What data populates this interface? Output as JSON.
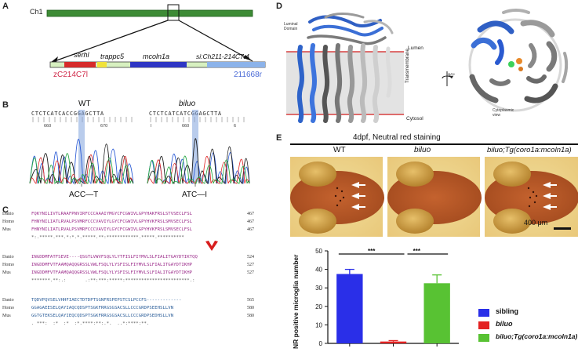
{
  "panel_a": {
    "letter": "A",
    "chromosome": "Ch1",
    "genes": [
      "serhl",
      "trappc5",
      "mcoln1a",
      "si:Ch211-214C7.4"
    ],
    "left_marker": "zC214C7l",
    "right_marker": "211668r"
  },
  "panel_b": {
    "letter": "B",
    "wt_label": "WT",
    "mut_label": "biluo",
    "wt_seq": "CTCTCATCACCGGAGCTTA",
    "mut_seq": "CTCTCATCATCGGAGCTTA",
    "wt_pos_left": "660",
    "wt_pos_right": "670",
    "mut_pos_left": "l",
    "mut_pos_center": "660",
    "mut_pos_right": "6",
    "wt_change": "ACC—T",
    "mut_change": "ATC—I"
  },
  "panel_c": {
    "letter": "C",
    "blocks": [
      {
        "rows": [
          {
            "species": "Danio",
            "seq": "FQKYNILIVTLRAAFPNVIRFCCCAAAIYMGYCFCGWIVLGPYHAKFRSLSTVSECLFSL",
            "num": "467"
          },
          {
            "species": "Homo",
            "seq": "FHNYNILIATLRVALPSVMRFCCCVAVIYLGYCFCGWIVLGPYHVKFRSLSMVSECLFSL",
            "num": "467"
          },
          {
            "species": "Mus",
            "seq": "FHNYNILIATLRVALPSVMRFCCCVAVIYLGYCFCGWIVLGPYHVKFRSLSMVSECLFSL",
            "num": "467"
          }
        ],
        "consensus": "*:.*****.***.*:*.*.*****.**:************.*****.**********"
      },
      {
        "rows": [
          {
            "species": "Danio",
            "seq": "INGDDMFATFSEVE----QSGTLVWVFSQLYLYTFISLFIYMVLSLFIALITGAYDTIKTQQ",
            "num": "524"
          },
          {
            "species": "Homo",
            "seq": "INGDDMFVTFAAMQAQQGRSSLVWLFSQLYLYSFISLFIYMVLSLFIALITGAYDTIKHP",
            "num": "527"
          },
          {
            "species": "Mus",
            "seq": "INGDDMFVTFAAMQAQQGRSSLVWLFSQLYLYSFISLFIYMVLSLFIALITGAYDTIKHP",
            "num": "527"
          }
        ],
        "consensus": "*******.**:.:       .:**:***:*****:************************.:"
      },
      {
        "rows": [
          {
            "species": "Danio",
            "seq": "TQDVPQVSELVHHFIAECTDTDPTSGNFRSPEPSTCSLPCCFS-------------",
            "num": "565"
          },
          {
            "species": "Homo",
            "seq": "GGAGAEESELQAYIAQCQDSPTSGKFRRGSGSACSLLCCCGRDPSEEHSLLVN",
            "num": "580"
          },
          {
            "species": "Mus",
            "seq": "GGTGTEKSELQAYIEQCQDSPTSGKFRRGSGSACSLLCCCGRDPSEDHSLLVN",
            "num": "580"
          }
        ],
        "consensus": ". ***:  :*  :*  :*.****:**:.*.  ..*:****:**."
      }
    ]
  },
  "panel_d": {
    "letter": "D",
    "luminal": "Luminal Domain",
    "lumen": "Lumen",
    "transmembrane": "Transmembrane",
    "cytosol": "Cytosol",
    "rotation": "90°",
    "cyto_view": "Cytoplasmic view"
  },
  "panel_e": {
    "letter": "E",
    "title": "4dpf, Neutral red staining",
    "img_labels": [
      "WT",
      "biluo",
      "biluo;Tg(coro1a:mcoln1a)"
    ],
    "scale_bar": "400 μm",
    "sig_left": "***",
    "sig_right": "***"
  },
  "chart_data": {
    "type": "bar",
    "categories": [
      "sibling",
      "biluo",
      "biluo;Tg(coro1a:mcoln1a)"
    ],
    "values": [
      37.5,
      1.0,
      32.5
    ],
    "errors": [
      2.5,
      0.5,
      4.5
    ],
    "colors": [
      "#2a2fe8",
      "#e32222",
      "#58c233"
    ],
    "ylabel": "NR positive microglia number",
    "ylim": [
      0,
      50
    ],
    "yticks": [
      "0",
      "10",
      "20",
      "30",
      "40",
      "50"
    ],
    "legend": [
      "sibling",
      "biluo",
      "biluo;Tg(coro1a:mcoln1a)"
    ],
    "legend_position": "right"
  }
}
